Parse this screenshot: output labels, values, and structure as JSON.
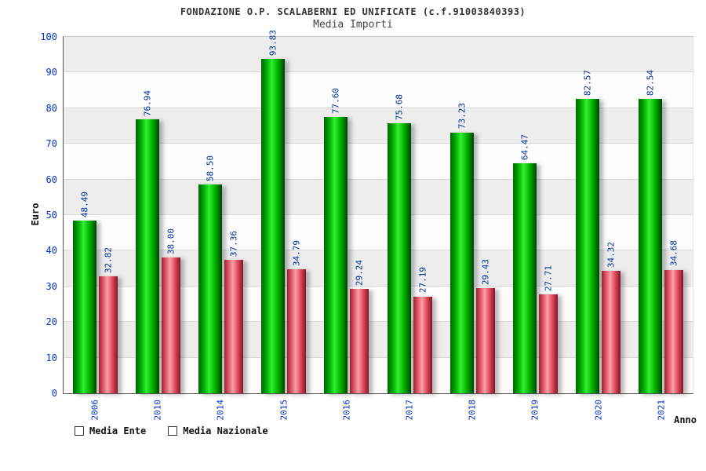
{
  "header": {
    "title": "FONDAZIONE O.P. SCALABERNI ED UNIFICATE (c.f.91003840393)",
    "subtitle": "Media Importi"
  },
  "chart_data": {
    "type": "bar",
    "categories": [
      "2006",
      "2010",
      "2014",
      "2015",
      "2016",
      "2017",
      "2018",
      "2019",
      "2020",
      "2021"
    ],
    "series": [
      {
        "name": "Media Ente",
        "color": "#00cc00",
        "values": [
          48.49,
          76.94,
          58.5,
          93.83,
          77.6,
          75.68,
          73.23,
          64.47,
          82.57,
          82.54
        ]
      },
      {
        "name": "Media Nazionale",
        "color": "#ee6677",
        "values": [
          32.82,
          38.0,
          37.36,
          34.79,
          29.24,
          27.19,
          29.43,
          27.71,
          34.32,
          34.68
        ]
      }
    ],
    "title": "Media Importi",
    "xlabel": "Anno",
    "ylabel": "Euro",
    "ylim": [
      0,
      100
    ],
    "ytick_step": 10,
    "grid": "horizontal-bands",
    "legend_position": "bottom-left",
    "legend": [
      {
        "label": "Media Ente",
        "swatch": "#6699cc"
      },
      {
        "label": "Media Nazionale",
        "swatch": "#dd7788"
      }
    ],
    "value_label_color": "#003399",
    "tick_label_color": "#0033cc"
  }
}
